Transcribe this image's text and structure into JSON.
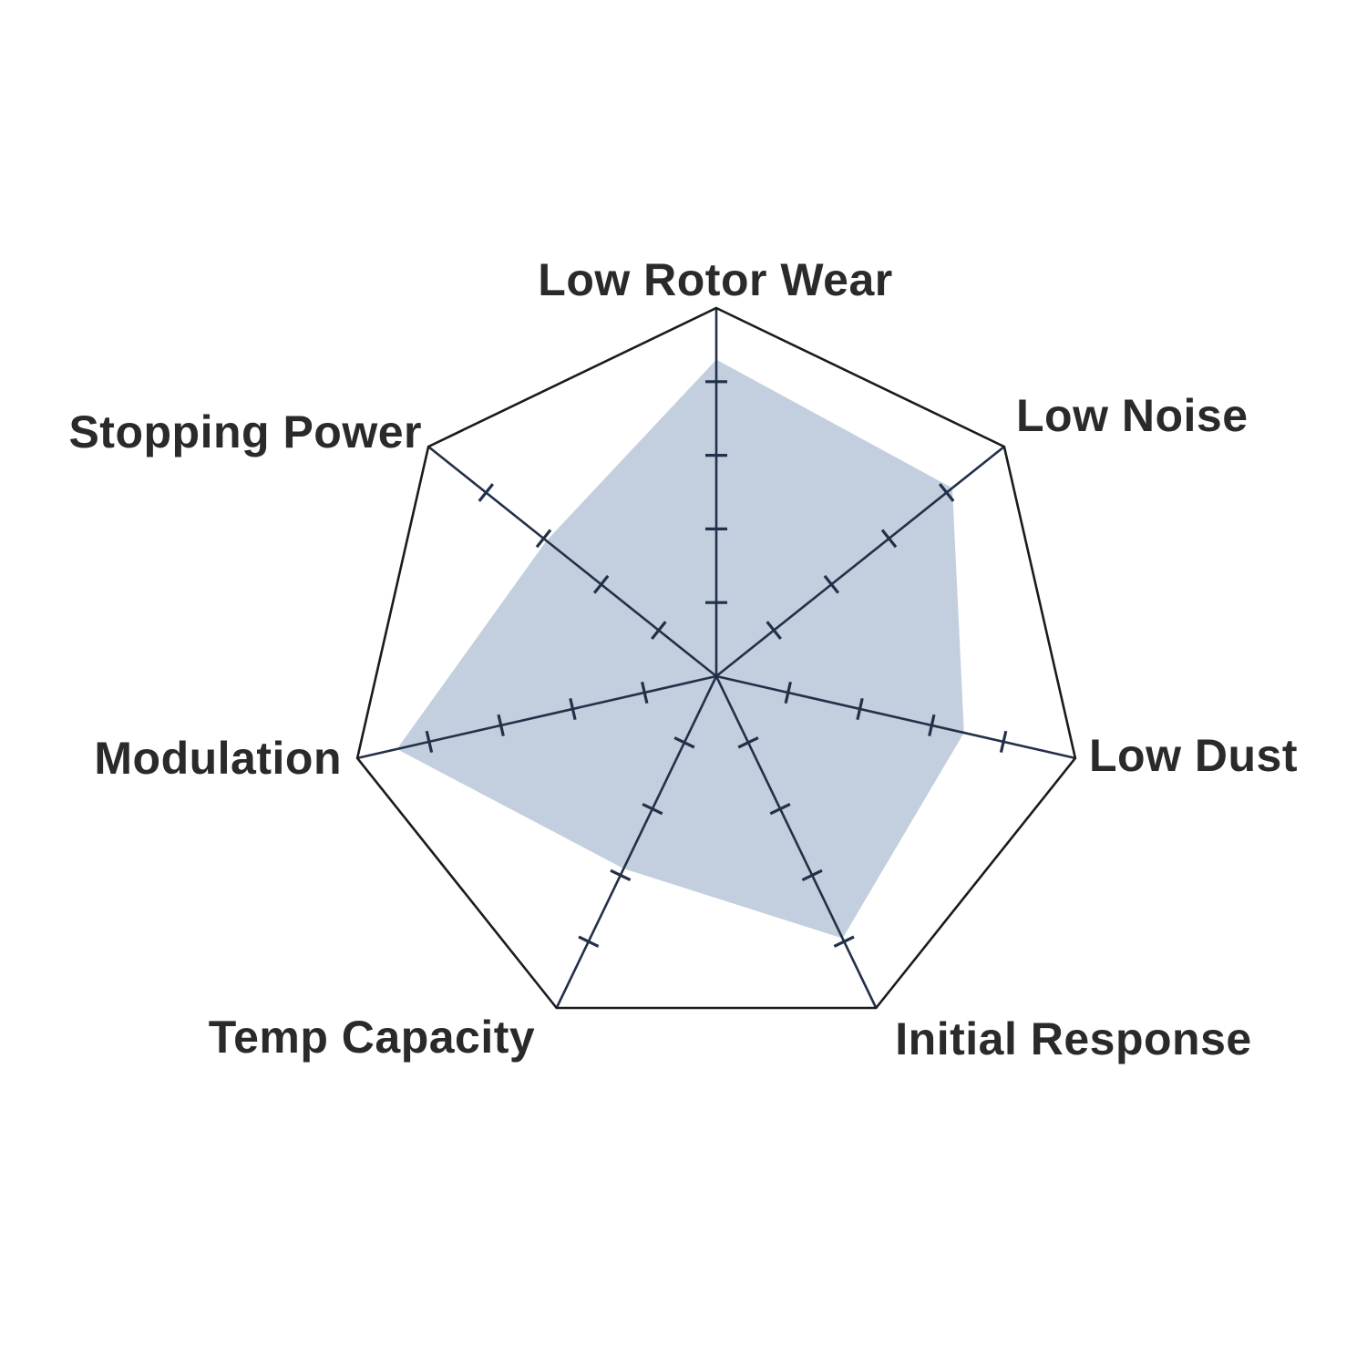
{
  "chart_data": {
    "type": "radar",
    "categories": [
      "Low Rotor Wear",
      "Low Noise",
      "Low Dust",
      "Initial Response",
      "Temp Capacity",
      "Modulation",
      "Stopping Power"
    ],
    "values": [
      4.3,
      4.1,
      3.45,
      3.95,
      2.9,
      4.45,
      2.95
    ],
    "scale": {
      "min": 0,
      "max": 5,
      "tick_interval": 1,
      "ticks_per_axis": 4
    },
    "layout_hints": {
      "start_axis": "top",
      "direction": "clockwise",
      "grid": "outer-polygon-only",
      "legend": "none",
      "axis_count": 7
    },
    "colors": {
      "fill": "#c3cfde",
      "axis_line": "#233049",
      "outline": "#1b1b1b",
      "label_text": "#2b2a2b",
      "background": "#ffffff"
    }
  }
}
